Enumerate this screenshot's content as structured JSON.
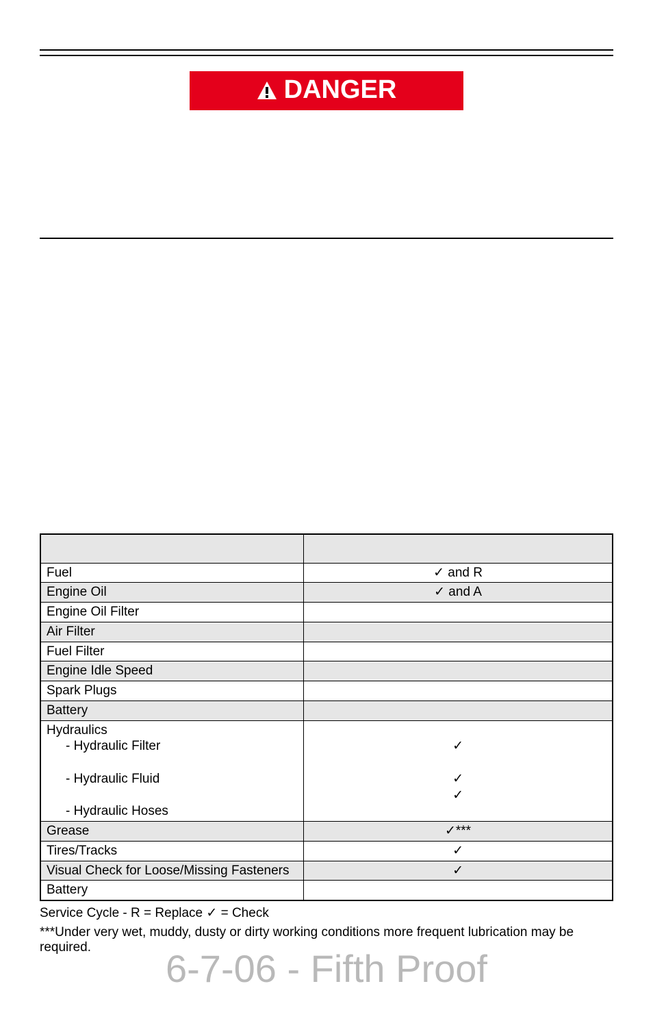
{
  "danger": {
    "label": "DANGER"
  },
  "table": {
    "rows": [
      {
        "label": "Fuel",
        "value": "✓ and R",
        "shade": false
      },
      {
        "label": "Engine Oil",
        "value": "✓ and A",
        "shade": true
      },
      {
        "label": "Engine Oil Filter",
        "value": "",
        "shade": false
      },
      {
        "label": "Air Filter",
        "value": "",
        "shade": true
      },
      {
        "label": "Fuel Filter",
        "value": "",
        "shade": false
      },
      {
        "label": "Engine Idle Speed",
        "value": "",
        "shade": true
      },
      {
        "label": "Spark Plugs",
        "value": "",
        "shade": false
      },
      {
        "label": "Battery",
        "value": "",
        "shade": true
      },
      {
        "label": "Hydraulics",
        "value": "✓",
        "shade": false,
        "subs": [
          {
            "label": "- Hydraulic Filter",
            "value": ""
          },
          {
            "label": "- Hydraulic Fluid",
            "value": "✓"
          },
          {
            "label": "- Hydraulic Hoses",
            "value": "✓"
          }
        ]
      },
      {
        "label": "Grease",
        "value": "✓***",
        "shade": true
      },
      {
        "label": "Tires/Tracks",
        "value": "✓",
        "shade": false
      },
      {
        "label": "Visual Check for Loose/Missing Fasteners",
        "value": "✓",
        "shade": true
      },
      {
        "label": "Battery",
        "value": "",
        "shade": false
      }
    ]
  },
  "legend": {
    "line1": "Service Cycle - R = Replace   ✓ = Check",
    "line2": "***Under very wet, muddy, dusty or dirty working conditions more frequent lubrication may be required."
  },
  "watermark": "6-7-06 - Fifth Proof",
  "colors": {
    "danger_bg": "#e4001b",
    "shade_bg": "#e6e6e6",
    "watermark": "#b9b9b9"
  }
}
